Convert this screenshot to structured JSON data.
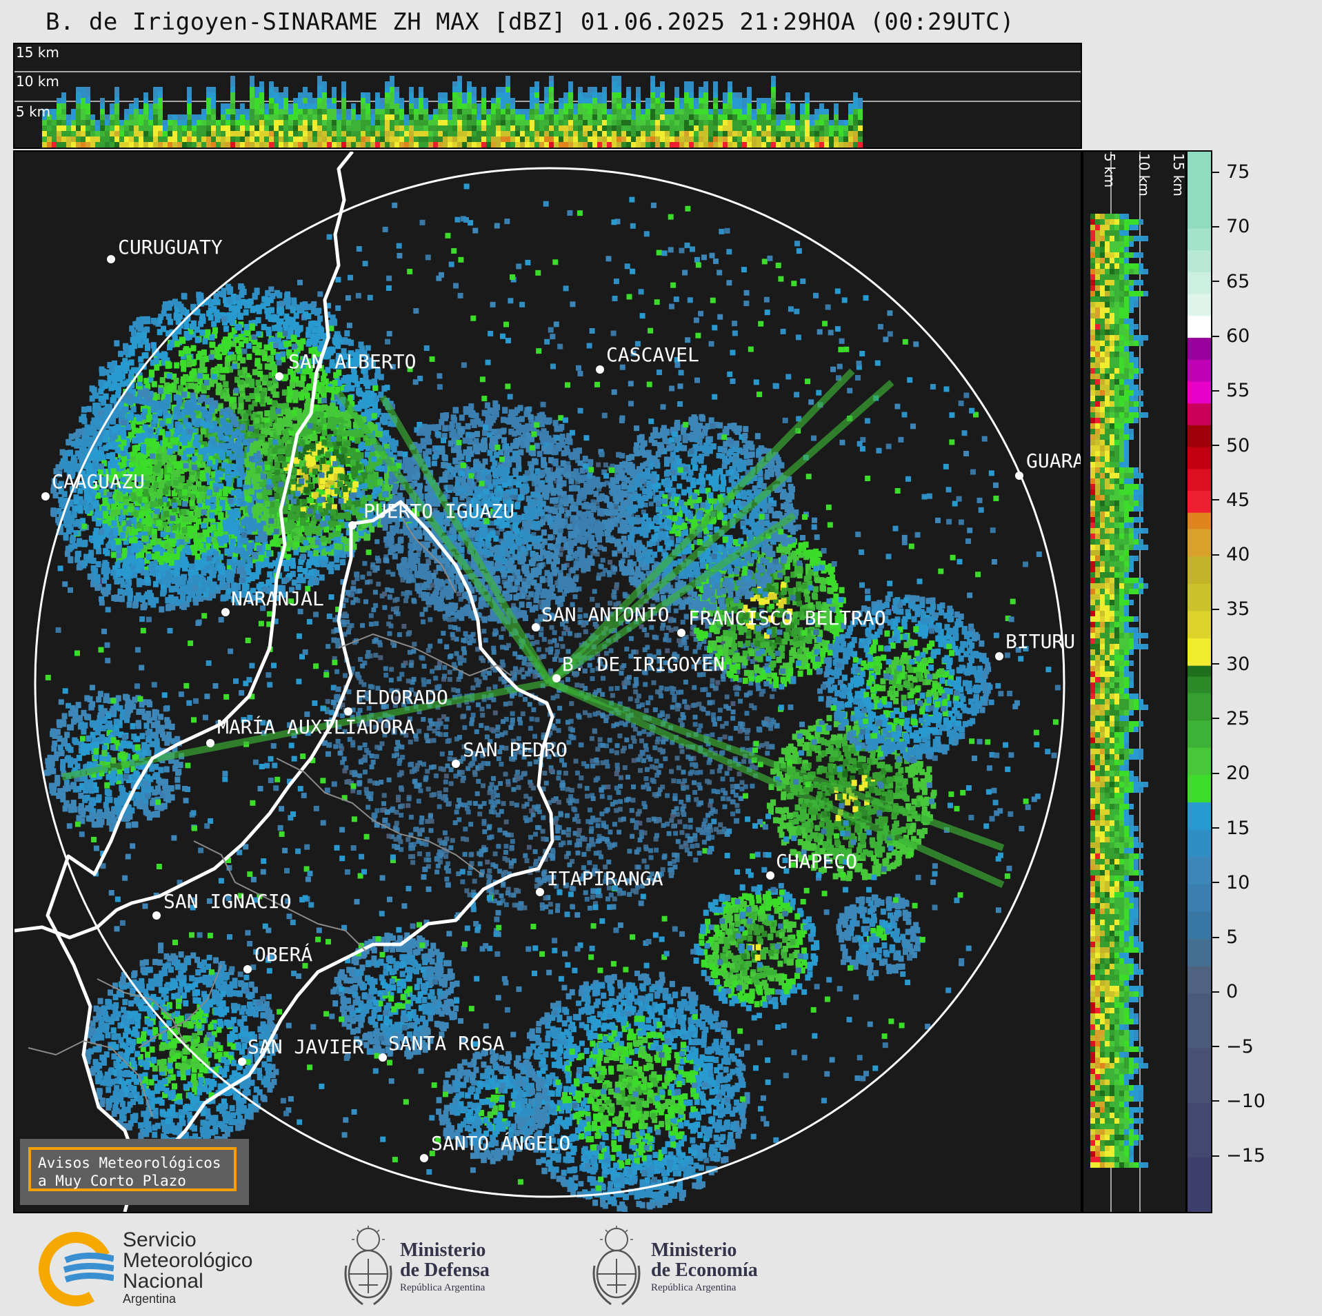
{
  "title": "B. de Irigoyen-SINARAME ZH MAX [dBZ] 01.06.2025 21:29HOA (00:29UTC)",
  "top_panel": {
    "height_labels": [
      "15 km",
      "10 km",
      "5 km"
    ]
  },
  "side_panel": {
    "height_labels": [
      "5 km",
      "10 km",
      "15 km"
    ]
  },
  "colorbar": {
    "min": -20,
    "max": 77,
    "ticks": [
      "75",
      "70",
      "65",
      "60",
      "55",
      "50",
      "45",
      "40",
      "35",
      "30",
      "25",
      "20",
      "15",
      "10",
      "5",
      "0",
      "−5",
      "−10",
      "−15"
    ],
    "tick_values": [
      75,
      70,
      65,
      60,
      55,
      50,
      45,
      40,
      35,
      30,
      25,
      20,
      15,
      10,
      5,
      0,
      -5,
      -10,
      -15
    ],
    "colors": [
      [
        "#3d3f6a",
        -20
      ],
      [
        "#42486f",
        -15
      ],
      [
        "#465174",
        -10
      ],
      [
        "#4a5a7b",
        -5
      ],
      [
        "#4f6381",
        0
      ],
      [
        "#436f93",
        2.5
      ],
      [
        "#3876a3",
        5
      ],
      [
        "#3b7fb0",
        7.5
      ],
      [
        "#3d86b8",
        10
      ],
      [
        "#2f8fc4",
        12.5
      ],
      [
        "#289ad0",
        15
      ],
      [
        "#3bdc2a",
        17.5
      ],
      [
        "#46c83a",
        20
      ],
      [
        "#3cb337",
        22.5
      ],
      [
        "#359f2f",
        25
      ],
      [
        "#2d8a28",
        27.5
      ],
      [
        "#206f1c",
        29
      ],
      [
        "#f0ec30",
        30
      ],
      [
        "#ddd32b",
        32.5
      ],
      [
        "#c9c22b",
        35
      ],
      [
        "#c4b429",
        37.5
      ],
      [
        "#d8a22a",
        40
      ],
      [
        "#e0841e",
        42.5
      ],
      [
        "#ee2030",
        44
      ],
      [
        "#dc1020",
        46
      ],
      [
        "#c00010",
        48
      ],
      [
        "#a00008",
        50
      ],
      [
        "#c8005a",
        52
      ],
      [
        "#e800c8",
        54
      ],
      [
        "#c000b4",
        56
      ],
      [
        "#98009c",
        58
      ],
      [
        "#ffffff",
        60
      ],
      [
        "#dff5ec",
        62
      ],
      [
        "#cdefe2",
        64
      ],
      [
        "#b8e9d7",
        66
      ],
      [
        "#a3e2cb",
        68
      ],
      [
        "#8fdcc0",
        70
      ],
      [
        "#7ed6b8",
        77
      ]
    ]
  },
  "cities": [
    {
      "name": "CURUGUATY"
    },
    {
      "name": "SAN ALBERTO"
    },
    {
      "name": "CASCAVEL"
    },
    {
      "name": "GUARA"
    },
    {
      "name": "CAAGUAZU"
    },
    {
      "name": "PUERTO IGUAZU"
    },
    {
      "name": "NARANJAL"
    },
    {
      "name": "SAN ANTONIO"
    },
    {
      "name": "FRANCISCO BELTRAO"
    },
    {
      "name": "BITURU"
    },
    {
      "name": "B. DE IRIGOYEN"
    },
    {
      "name": "ELDORADO"
    },
    {
      "name": "MARÍA AUXILIADORA"
    },
    {
      "name": "SAN PEDRO"
    },
    {
      "name": "CHAPECO"
    },
    {
      "name": "ITAPIRANGA"
    },
    {
      "name": "SAN IGNACIO"
    },
    {
      "name": "OBERÁ"
    },
    {
      "name": "SAN JAVIER"
    },
    {
      "name": "SANTA ROSA"
    },
    {
      "name": "SANTO ÁNGELO"
    }
  ],
  "avisos": {
    "line1": "Avisos Meteorológicos",
    "line2": "a Muy Corto Plazo"
  },
  "logos": {
    "smn": {
      "line1": "Servicio",
      "line2": "Meteorológico",
      "line3": "Nacional",
      "line4": "Argentina",
      "icon": "smn-logo-icon"
    },
    "defensa": {
      "line1": "Ministerio",
      "line2": "de Defensa",
      "line3": "República Argentina",
      "icon": "coat-of-arms-icon"
    },
    "economia": {
      "line1": "Ministerio",
      "line2": "de Economía",
      "line3": "República Argentina",
      "icon": "coat-of-arms-icon"
    }
  }
}
